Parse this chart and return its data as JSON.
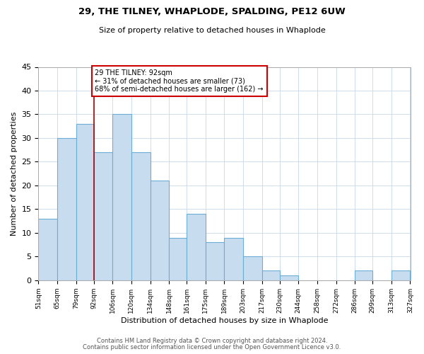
{
  "title": "29, THE TILNEY, WHAPLODE, SPALDING, PE12 6UW",
  "subtitle": "Size of property relative to detached houses in Whaplode",
  "xlabel": "Distribution of detached houses by size in Whaplode",
  "ylabel": "Number of detached properties",
  "bar_color": "#c8dcf0",
  "bar_edge_color": "#6aaed6",
  "background_color": "#ffffff",
  "grid_color": "#c8d8e8",
  "marker_line_color": "#aa0000",
  "marker_value": 92,
  "annotation_title": "29 THE TILNEY: 92sqm",
  "annotation_line1": "← 31% of detached houses are smaller (73)",
  "annotation_line2": "68% of semi-detached houses are larger (162) →",
  "annotation_box_color": "#ffffff",
  "annotation_box_edge": "#cc0000",
  "bins": [
    51,
    65,
    79,
    92,
    106,
    120,
    134,
    148,
    161,
    175,
    189,
    203,
    217,
    230,
    244,
    258,
    272,
    286,
    299,
    313,
    327
  ],
  "counts": [
    13,
    30,
    33,
    27,
    35,
    27,
    21,
    9,
    14,
    8,
    9,
    5,
    2,
    1,
    0,
    0,
    0,
    2,
    0,
    2
  ],
  "ylim": [
    0,
    45
  ],
  "yticks": [
    0,
    5,
    10,
    15,
    20,
    25,
    30,
    35,
    40,
    45
  ],
  "footer_line1": "Contains HM Land Registry data © Crown copyright and database right 2024.",
  "footer_line2": "Contains public sector information licensed under the Open Government Licence v3.0."
}
